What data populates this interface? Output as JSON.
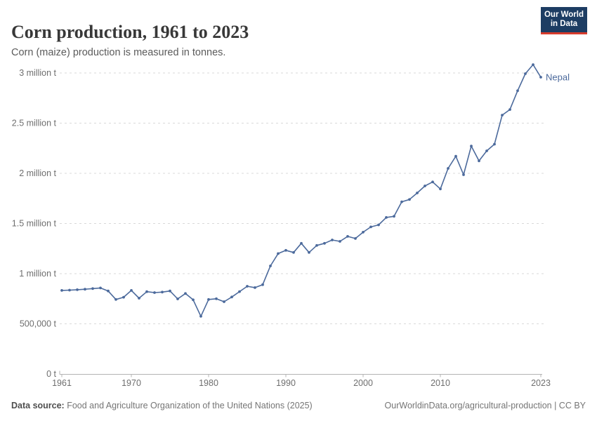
{
  "header": {
    "title": "Corn production, 1961 to 2023",
    "subtitle": "Corn (maize) production is measured in tonnes.",
    "logo": {
      "line1": "Our World",
      "line2": "in Data",
      "bg_color": "#1d3d63",
      "accent_color": "#d73c2c"
    }
  },
  "chart_data": {
    "type": "line",
    "title": "Corn production, 1961 to 2023",
    "xlabel": "",
    "ylabel": "",
    "unit": "t",
    "grid": "horizontal-dashed",
    "legend_position": "end-of-line-label",
    "line_color": "#4c6a9c",
    "grid_color": "#d9d9d9",
    "axis_color": "#b3b3b3",
    "tick_text_color": "#6e6e6e",
    "xlim": [
      1961,
      2023
    ],
    "ylim": [
      0,
      3100000
    ],
    "x_ticks": [
      1961,
      1970,
      1980,
      1990,
      2000,
      2010,
      2023
    ],
    "y_ticks": [
      {
        "value": 0,
        "label": "0 t"
      },
      {
        "value": 500000,
        "label": "500,000 t"
      },
      {
        "value": 1000000,
        "label": "1 million t"
      },
      {
        "value": 1500000,
        "label": "1.5 million t"
      },
      {
        "value": 2000000,
        "label": "2 million t"
      },
      {
        "value": 2500000,
        "label": "2.5 million t"
      },
      {
        "value": 3000000,
        "label": "3 million t"
      }
    ],
    "series": [
      {
        "name": "Nepal",
        "color": "#4c6a9c",
        "x": [
          1961,
          1962,
          1963,
          1964,
          1965,
          1966,
          1967,
          1968,
          1969,
          1970,
          1971,
          1972,
          1973,
          1974,
          1975,
          1976,
          1977,
          1978,
          1979,
          1980,
          1981,
          1982,
          1983,
          1984,
          1985,
          1986,
          1987,
          1988,
          1989,
          1990,
          1991,
          1992,
          1993,
          1994,
          1995,
          1996,
          1997,
          1998,
          1999,
          2000,
          2001,
          2002,
          2003,
          2004,
          2005,
          2006,
          2007,
          2008,
          2009,
          2010,
          2011,
          2012,
          2013,
          2014,
          2015,
          2016,
          2017,
          2018,
          2019,
          2020,
          2021,
          2022,
          2023
        ],
        "values": [
          833000,
          836000,
          840000,
          845000,
          851000,
          857000,
          827000,
          743000,
          765000,
          833000,
          755000,
          820000,
          811000,
          816000,
          827000,
          748000,
          802000,
          739000,
          575000,
          743000,
          750000,
          720000,
          767000,
          821000,
          874000,
          861000,
          890000,
          1077000,
          1200000,
          1232000,
          1211000,
          1302000,
          1211000,
          1281000,
          1302000,
          1336000,
          1322000,
          1371000,
          1350000,
          1413000,
          1466000,
          1486000,
          1560000,
          1571000,
          1716000,
          1739000,
          1804000,
          1874000,
          1914000,
          1844000,
          2049000,
          2170000,
          1986000,
          2271000,
          2124000,
          2224000,
          2290000,
          2580000,
          2636000,
          2823000,
          2993000,
          3083000,
          2958000
        ]
      }
    ]
  },
  "footer": {
    "source_label": "Data source:",
    "source_text": " Food and Agriculture Organization of the United Nations (2025)",
    "right_text": "OurWorldinData.org/agricultural-production | CC BY"
  }
}
